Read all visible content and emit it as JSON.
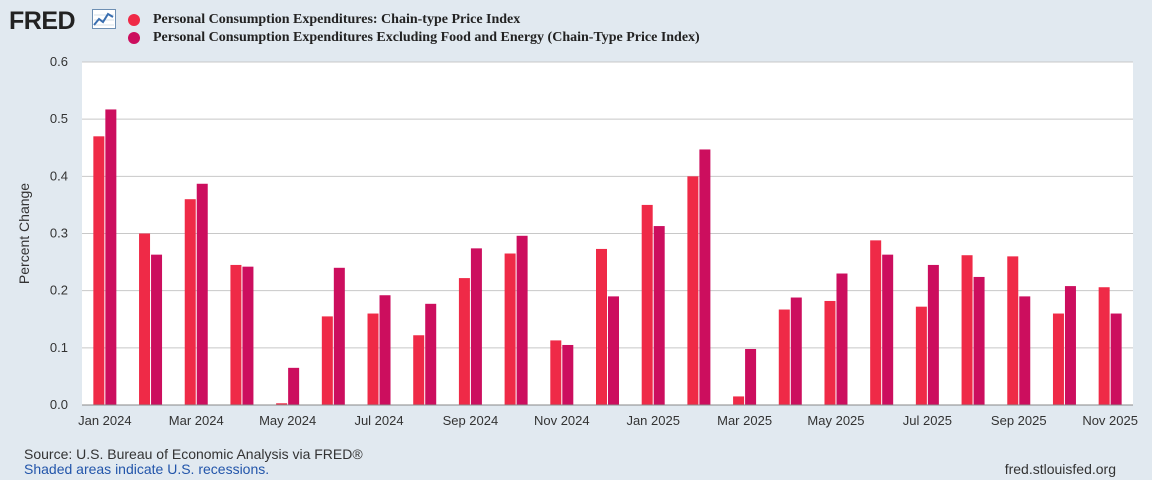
{
  "header": {
    "logo_text": "FRED",
    "logo_icon": "line-chart-icon"
  },
  "colors": {
    "series1": "#ef2a47",
    "series2": "#cc0e5e",
    "plot_bg": "#ffffff",
    "page_bg": "#e1e9f0",
    "grid": "#c8c8c8"
  },
  "chart_data": {
    "type": "bar",
    "ylabel": "Percent Change",
    "ylim": [
      0,
      0.6
    ],
    "yticks": [
      "0.0",
      "0.1",
      "0.2",
      "0.3",
      "0.4",
      "0.5",
      "0.6"
    ],
    "grid": true,
    "legend_position": "top-left",
    "categories": [
      "Jan 2024",
      "Feb 2024",
      "Mar 2024",
      "Apr 2024",
      "May 2024",
      "Jun 2024",
      "Jul 2024",
      "Aug 2024",
      "Sep 2024",
      "Oct 2024",
      "Nov 2024",
      "Dec 2024",
      "Jan 2025",
      "Feb 2025",
      "Mar 2025",
      "Apr 2025",
      "May 2025",
      "Jun 2025",
      "Jul 2025",
      "Aug 2025",
      "Sep 2025",
      "Oct 2025",
      "Nov 2025"
    ],
    "xtick_labels": [
      "Jan 2024",
      "Mar 2024",
      "May 2024",
      "Jul 2024",
      "Sep 2024",
      "Nov 2024",
      "Jan 2025",
      "Mar 2025",
      "May 2025",
      "Jul 2025",
      "Sep 2025",
      "Nov 2025"
    ],
    "series": [
      {
        "name": "Personal Consumption Expenditures: Chain-type Price Index",
        "values": [
          0.47,
          0.3,
          0.36,
          0.245,
          0.003,
          0.155,
          0.16,
          0.122,
          0.222,
          0.265,
          0.113,
          0.273,
          0.35,
          0.4,
          0.015,
          0.167,
          0.182,
          0.288,
          0.172,
          0.262,
          0.26,
          0.16,
          0.206
        ]
      },
      {
        "name": "Personal Consumption Expenditures Excluding Food and Energy (Chain-Type Price Index)",
        "values": [
          0.517,
          0.263,
          0.387,
          0.242,
          0.065,
          0.24,
          0.192,
          0.177,
          0.274,
          0.296,
          0.105,
          0.19,
          0.313,
          0.447,
          0.098,
          0.188,
          0.23,
          0.263,
          0.245,
          0.224,
          0.19,
          0.208,
          0.16
        ]
      }
    ]
  },
  "footer": {
    "source": "Source: U.S. Bureau of Economic Analysis via FRED®",
    "recession_note": "Shaded areas indicate U.S. recessions.",
    "url": "fred.stlouisfed.org"
  }
}
